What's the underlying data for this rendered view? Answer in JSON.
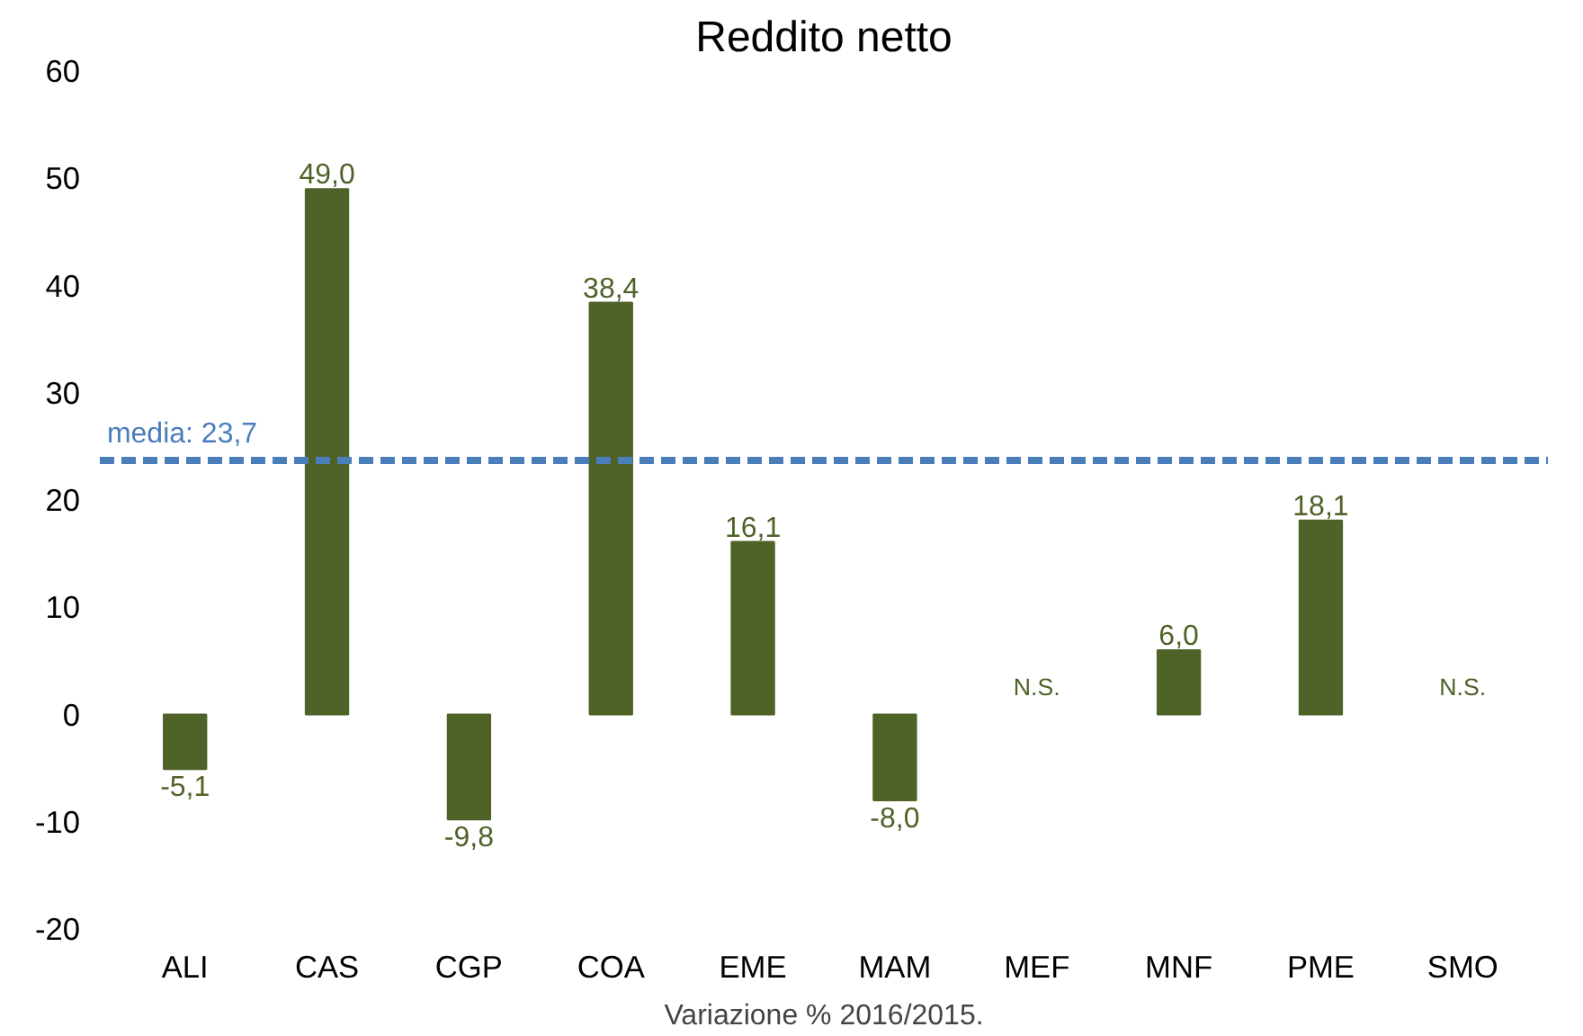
{
  "chart_data": {
    "type": "bar",
    "title": "Reddito netto",
    "xlabel": "Variazione % 2016/2015.",
    "categories": [
      "ALI",
      "CAS",
      "CGP",
      "COA",
      "EME",
      "MAM",
      "MEF",
      "MNF",
      "PME",
      "SMO"
    ],
    "values": [
      -5.1,
      49.0,
      -9.8,
      38.4,
      16.1,
      -8.0,
      null,
      6.0,
      18.1,
      null
    ],
    "value_labels": [
      "-5,1",
      "49,0",
      "-9,8",
      "38,4",
      "16,1",
      "-8,0",
      "N.S.",
      "6,0",
      "18,1",
      "N.S."
    ],
    "color": "#4f6228",
    "ylim": [
      -20,
      60
    ],
    "yticks": [
      -20,
      -10,
      0,
      10,
      20,
      30,
      40,
      50,
      60
    ],
    "ref_lines": [
      {
        "axis": "y",
        "value": 23.7,
        "label": "media: 23,7",
        "color": "#4a7ebb",
        "line_style": "dashed"
      }
    ],
    "grid": false
  }
}
